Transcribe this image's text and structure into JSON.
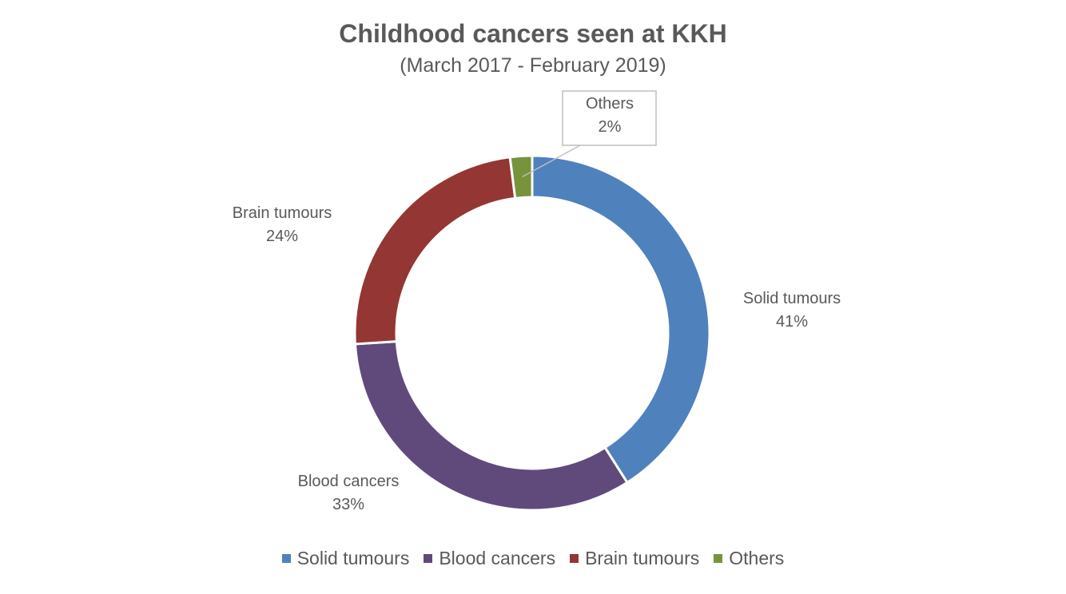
{
  "chart_data": {
    "type": "pie",
    "title": "Childhood cancers seen at KKH",
    "subtitle": "(March 2017 - February 2019)",
    "donut": true,
    "legend_position": "bottom",
    "slices": [
      {
        "label": "Solid tumours",
        "value": 41,
        "value_label": "41%",
        "color": "#4F81BD"
      },
      {
        "label": "Blood cancers",
        "value": 33,
        "value_label": "33%",
        "color": "#604A7B"
      },
      {
        "label": "Brain tumours",
        "value": 24,
        "value_label": "24%",
        "color": "#943634"
      },
      {
        "label": "Others",
        "value": 2,
        "value_label": "2%",
        "color": "#77933C"
      }
    ]
  }
}
